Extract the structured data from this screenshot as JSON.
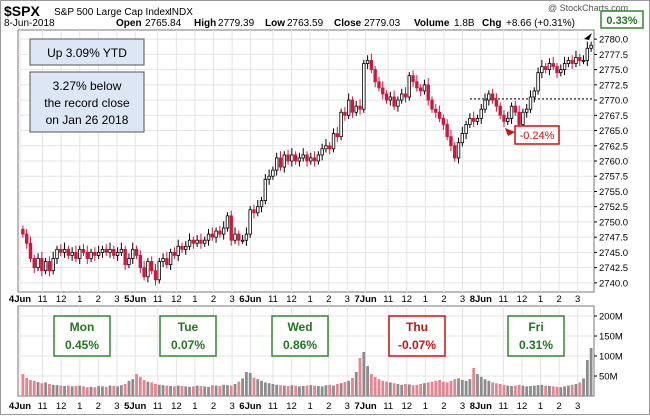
{
  "header": {
    "symbol": "$SPX",
    "name": "S&P 500 Large Cap Index",
    "exchange": "INDX",
    "date": "8-Jun-2018",
    "open_label": "Open",
    "open": "2765.84",
    "high_label": "High",
    "high": "2779.39",
    "low_label": "Low",
    "low": "2763.59",
    "close_label": "Close",
    "close": "2779.03",
    "volume_label": "Volume",
    "volume": "1.8B",
    "chg_label": "Chg",
    "chg": "+8.66 (+0.31%)",
    "watermark": "@ StockCharts.com"
  },
  "annotations": {
    "ytd": "Up 3.09% YTD",
    "record_line1": "3.27% below",
    "record_line2": "the record close",
    "record_line3": "on Jan 26 2018",
    "pct_badge": "0.33%",
    "neg_badge": "-0.24%",
    "ref_line_value": 2770.2
  },
  "days": [
    {
      "name": "Mon",
      "value": "0.45%",
      "color": "#1f7a1f"
    },
    {
      "name": "Tue",
      "value": "0.07%",
      "color": "#1f7a1f"
    },
    {
      "name": "Wed",
      "value": "0.86%",
      "color": "#1f7a1f"
    },
    {
      "name": "Thu",
      "value": "-0.07%",
      "color": "#cc1111"
    },
    {
      "name": "Fri",
      "value": "0.31%",
      "color": "#1f7a1f"
    }
  ],
  "colors": {
    "up": "#000000",
    "down": "#d4143c",
    "vol_up": "#8c8c8c",
    "vol_down": "#e8848e",
    "grid": "#e4e4e4",
    "box_fill": "#dce6f4",
    "day_box_border": "#2d8a2d"
  },
  "chart_data": {
    "type": "candlestick",
    "interval": "intraday",
    "ylim": [
      2738.5,
      2781.5
    ],
    "yticks": [
      2740.0,
      2742.5,
      2745.0,
      2747.5,
      2750.0,
      2752.5,
      2755.0,
      2757.5,
      2760.0,
      2762.5,
      2765.0,
      2767.5,
      2770.0,
      2772.5,
      2775.0,
      2777.5,
      2780.0
    ],
    "xtick_labels": [
      "4Jun",
      "11",
      "12",
      "1",
      "2",
      "3",
      "5Jun",
      "11",
      "12",
      "1",
      "2",
      "3",
      "6Jun",
      "11",
      "12",
      "1",
      "2",
      "3",
      "7Jun",
      "11",
      "12",
      "1",
      "2",
      "3",
      "8Jun",
      "11",
      "12",
      "1",
      "2",
      "3"
    ],
    "volume_ylim": [
      0,
      225
    ],
    "volume_yticks": [
      "50M",
      "100M",
      "150M",
      "200M"
    ],
    "closes": [
      2748.0,
      2746.5,
      2744.0,
      2742.5,
      2744.0,
      2742.0,
      2743.5,
      2742.0,
      2744.0,
      2745.5,
      2745.0,
      2745.5,
      2744.5,
      2745.0,
      2744.0,
      2745.5,
      2745.0,
      2744.0,
      2745.0,
      2744.5,
      2745.0,
      2745.5,
      2745.0,
      2745.5,
      2744.5,
      2745.0,
      2745.5,
      2743.0,
      2744.0,
      2745.5,
      2744.5,
      2742.5,
      2741.0,
      2743.5,
      2742.0,
      2740.5,
      2743.5,
      2744.0,
      2743.0,
      2745.0,
      2744.5,
      2746.0,
      2745.5,
      2746.0,
      2747.0,
      2746.5,
      2747.0,
      2746.5,
      2747.0,
      2748.0,
      2747.5,
      2748.5,
      2748.0,
      2749.0,
      2751.0,
      2747.0,
      2748.0,
      2747.0,
      2747.0,
      2748.0,
      2752.0,
      2751.5,
      2752.5,
      2753.5,
      2757.0,
      2757.5,
      2758.5,
      2760.5,
      2759.0,
      2761.0,
      2760.0,
      2761.0,
      2760.0,
      2760.5,
      2761.0,
      2760.0,
      2760.5,
      2760.0,
      2761.0,
      2762.0,
      2762.5,
      2762.0,
      2764.5,
      2764.0,
      2768.0,
      2767.5,
      2770.0,
      2768.0,
      2769.0,
      2768.5,
      2776.0,
      2776.5,
      2775.0,
      2773.0,
      2772.0,
      2771.0,
      2770.0,
      2770.5,
      2769.0,
      2770.0,
      2771.0,
      2770.5,
      2774.0,
      2773.0,
      2772.0,
      2771.5,
      2772.5,
      2770.0,
      2768.5,
      2768.0,
      2767.0,
      2766.0,
      2764.0,
      2762.5,
      2760.5,
      2763.0,
      2764.5,
      2766.0,
      2767.0,
      2766.5,
      2767.0,
      2768.5,
      2770.0,
      2771.0,
      2770.0,
      2769.0,
      2767.5,
      2766.5,
      2767.0,
      2769.0,
      2768.0,
      2766.0,
      2768.0,
      2768.5,
      2770.5,
      2771.5,
      2774.5,
      2775.5,
      2775.0,
      2776.0,
      2775.5,
      2774.5,
      2775.0,
      2776.0,
      2776.5,
      2776.0,
      2777.0,
      2776.5,
      2776.5,
      2778.5,
      2779.0
    ],
    "volumes": [
      55,
      45,
      40,
      38,
      35,
      32,
      34,
      30,
      28,
      27,
      26,
      25,
      26,
      24,
      25,
      26,
      24,
      22,
      23,
      22,
      25,
      24,
      23,
      26,
      25,
      24,
      27,
      30,
      38,
      42,
      55,
      48,
      40,
      36,
      34,
      30,
      28,
      27,
      26,
      25,
      24,
      26,
      25,
      24,
      23,
      24,
      26,
      25,
      24,
      23,
      27,
      26,
      25,
      28,
      27,
      26,
      30,
      36,
      44,
      60,
      58,
      46,
      42,
      38,
      34,
      32,
      30,
      28,
      27,
      26,
      25,
      27,
      26,
      24,
      25,
      26,
      27,
      26,
      25,
      24,
      27,
      28,
      26,
      30,
      32,
      35,
      38,
      45,
      60,
      95,
      110,
      75,
      55,
      48,
      42,
      38,
      36,
      34,
      32,
      30,
      28,
      30,
      29,
      27,
      28,
      30,
      32,
      34,
      36,
      38,
      40,
      36,
      34,
      38,
      42,
      44,
      40,
      38,
      42,
      70,
      55,
      48,
      42,
      38,
      34,
      32,
      30,
      28,
      26,
      25,
      26,
      28,
      26,
      24,
      25,
      26,
      27,
      28,
      26,
      25,
      24,
      23,
      22,
      24,
      26,
      28,
      30,
      34,
      44,
      90,
      120
    ]
  }
}
